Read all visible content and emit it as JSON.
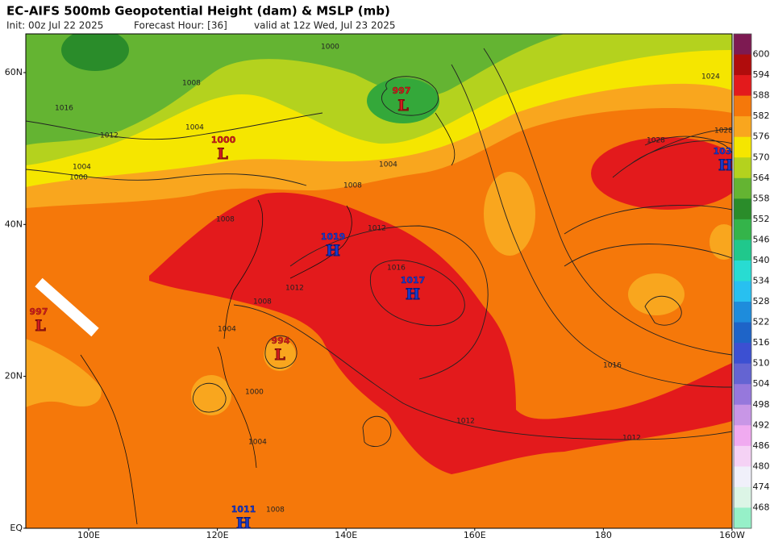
{
  "header": {
    "title": "EC-AIFS 500mb Geopotential Height (dam) & MSLP (mb)",
    "subtitle": [
      "Init: 00z Jul 22 2025",
      "Forecast Hour: [36]",
      "valid at 12z Wed, Jul 23 2025"
    ]
  },
  "axes": {
    "lat_labels": [
      "60N",
      "40N",
      "20N",
      "EQ"
    ],
    "lon_labels": [
      "100E",
      "120E",
      "140E",
      "160E",
      "180",
      "160W"
    ]
  },
  "colorbar": {
    "levels": [
      600,
      594,
      588,
      582,
      576,
      570,
      564,
      558,
      552,
      546,
      540,
      534,
      528,
      522,
      516,
      510,
      504,
      498,
      492,
      486,
      480,
      474,
      468
    ],
    "colors": [
      "#7d1a52",
      "#b00c0c",
      "#e31a1c",
      "#f5780a",
      "#f9a61e",
      "#f5e600",
      "#b4d21e",
      "#64b432",
      "#2a8c2a",
      "#34b44a",
      "#20c88c",
      "#28dcd2",
      "#28c0f0",
      "#1e8cdc",
      "#1e64c8",
      "#3c50d2",
      "#6464d2",
      "#9678dc",
      "#c896e6",
      "#f0aaf0",
      "#f5d2f5",
      "#f0f0fa",
      "#dcf5e6",
      "#96f0c8"
    ]
  },
  "centers": [
    {
      "letter": "L",
      "value": 997
    },
    {
      "letter": "L",
      "value": 1000
    },
    {
      "letter": "H",
      "value": 1019
    },
    {
      "letter": "H",
      "value": 1017
    },
    {
      "letter": "H",
      "value": 103
    },
    {
      "letter": "L",
      "value": 997
    },
    {
      "letter": "L",
      "value": 994
    },
    {
      "letter": "H",
      "value": 1011
    }
  ],
  "contour_labels": [
    1000,
    1008,
    1016,
    1012,
    1004,
    1008,
    1004,
    1012,
    1016,
    1028,
    1024,
    1028,
    1016,
    1012,
    1012,
    1008,
    1004,
    1000,
    1004,
    1008,
    1012,
    1004,
    1000,
    1008
  ]
}
